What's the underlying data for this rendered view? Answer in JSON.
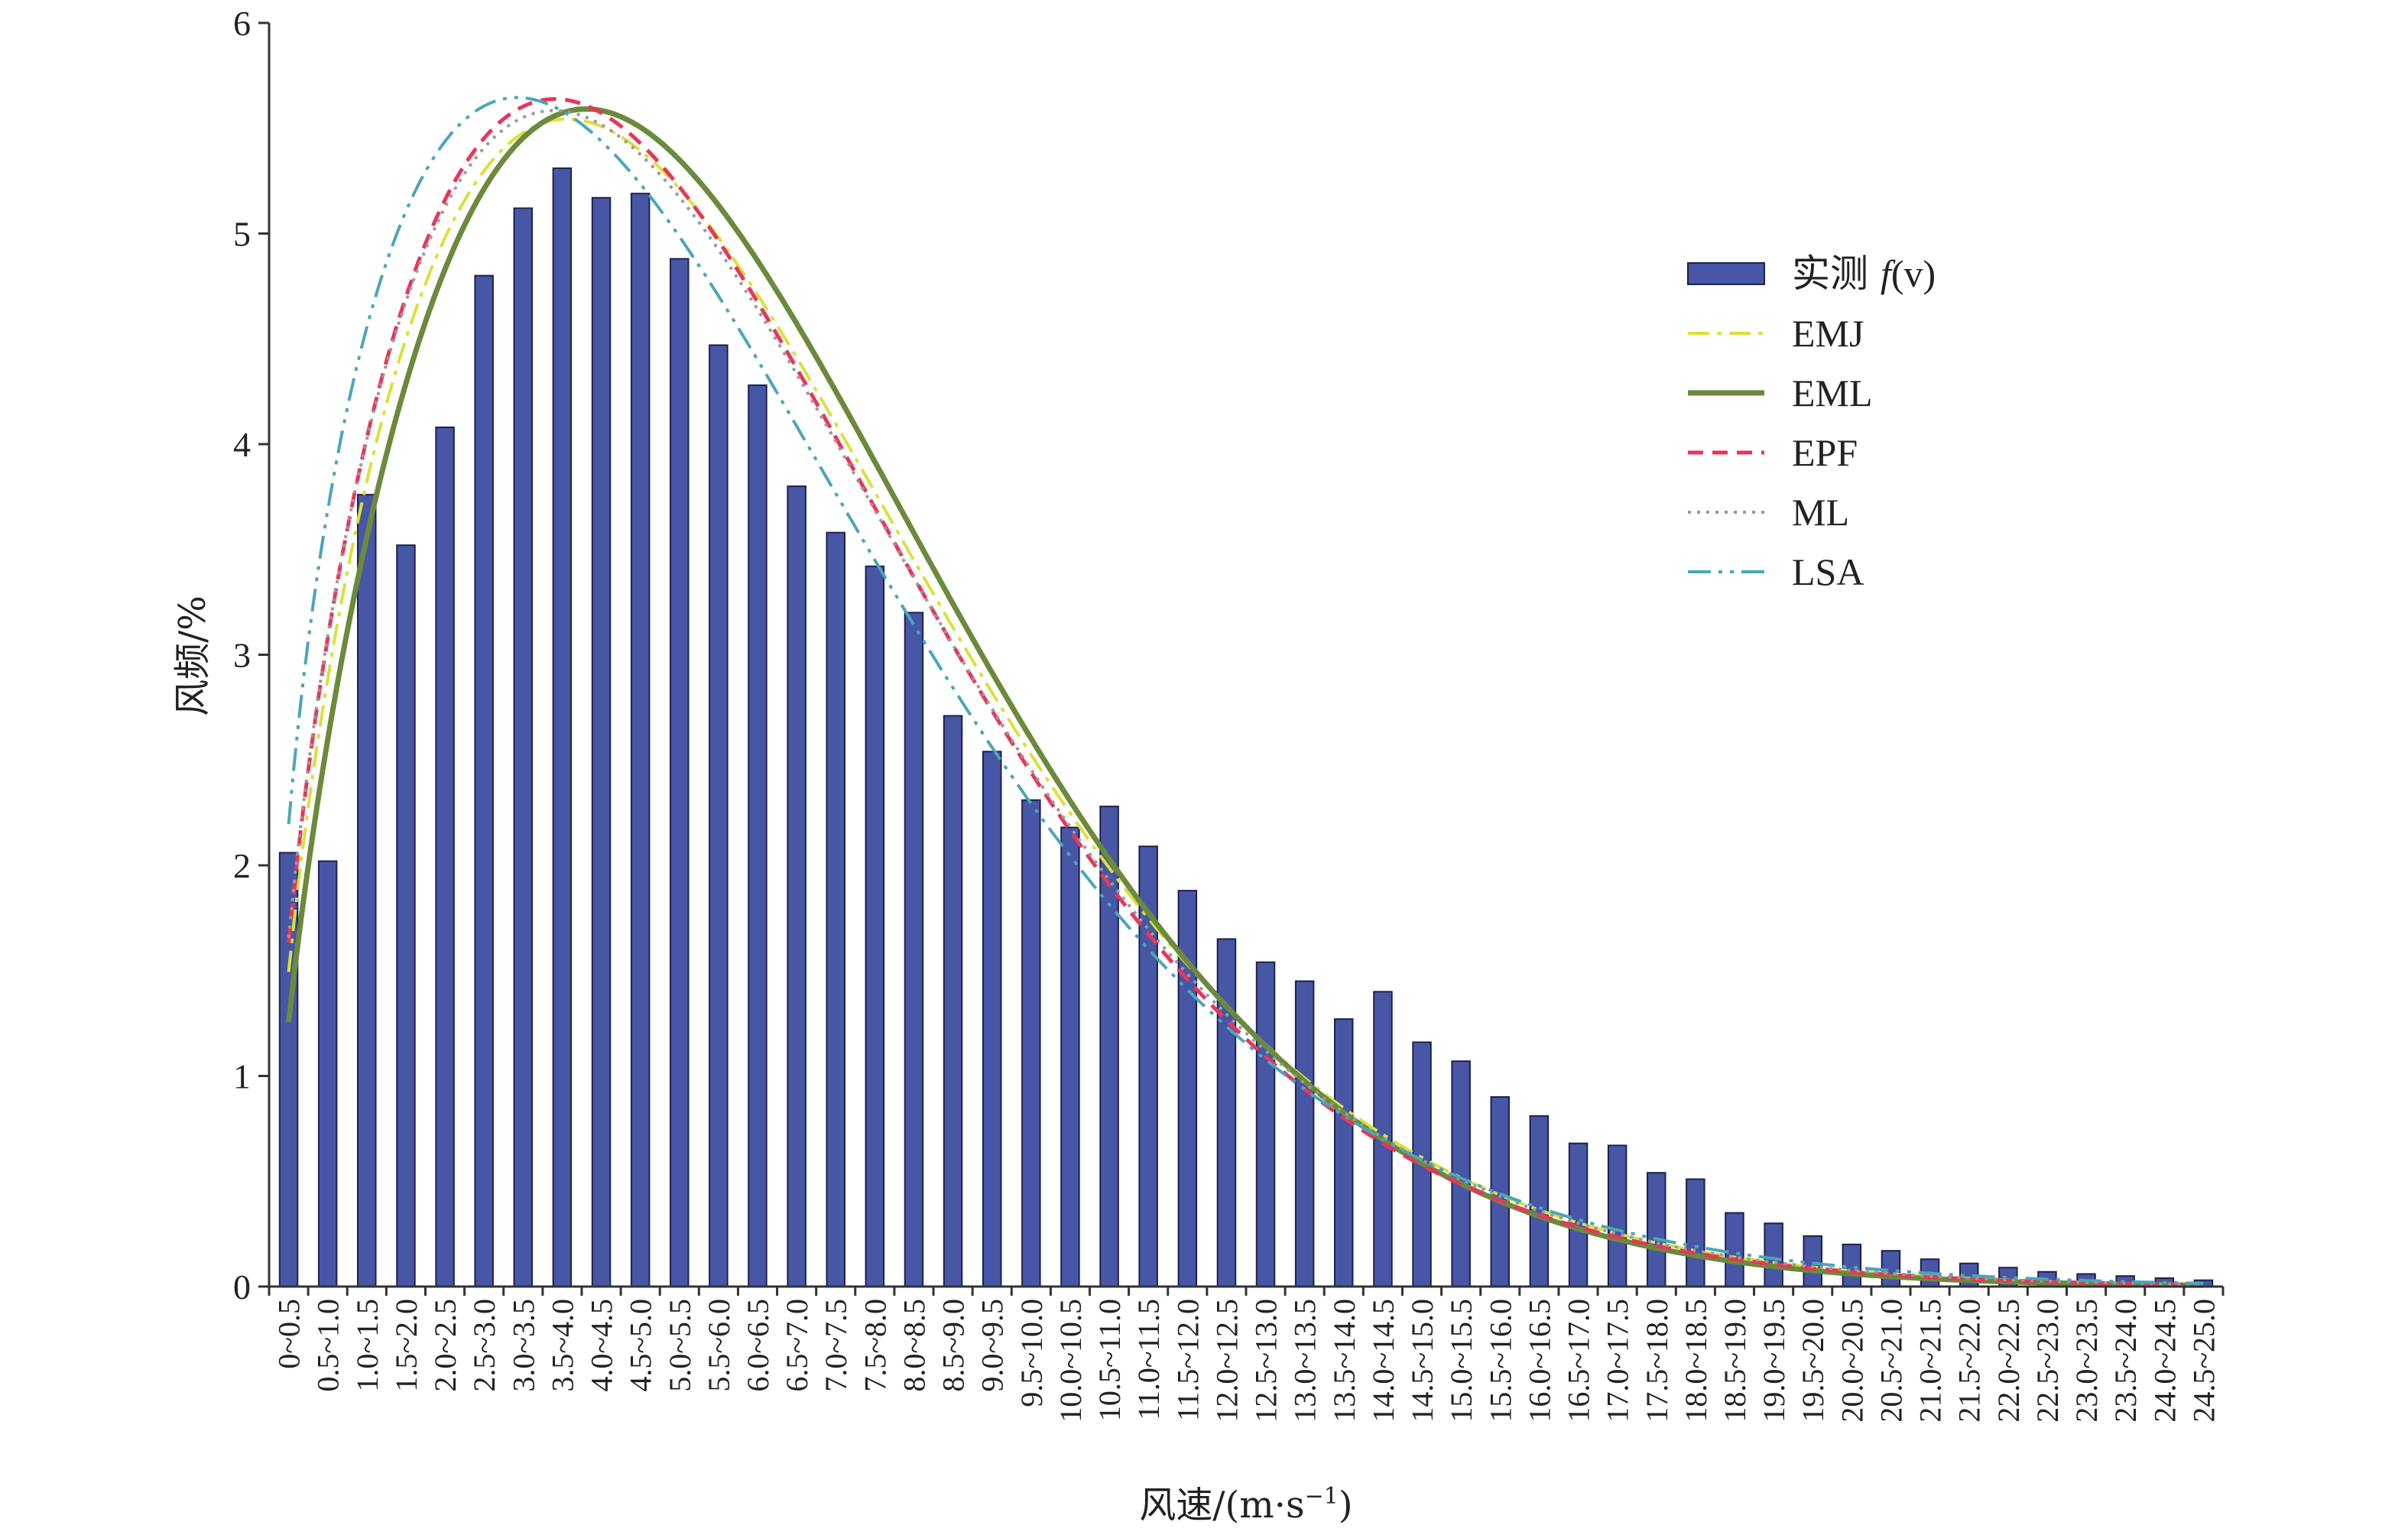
{
  "chart_data": {
    "type": "bar",
    "xlabel": "风速/(m·s⁻¹)",
    "ylabel": "风频/%",
    "ylim": [
      0,
      6
    ],
    "yticks": [
      0,
      1,
      2,
      3,
      4,
      5,
      6
    ],
    "grid": false,
    "legend_position": "top-right",
    "categories": [
      "0~0.5",
      "0.5~1.0",
      "1.0~1.5",
      "1.5~2.0",
      "2.0~2.5",
      "2.5~3.0",
      "3.0~3.5",
      "3.5~4.0",
      "4.0~4.5",
      "4.5~5.0",
      "5.0~5.5",
      "5.5~6.0",
      "6.0~6.5",
      "6.5~7.0",
      "7.0~7.5",
      "7.5~8.0",
      "8.0~8.5",
      "8.5~9.0",
      "9.0~9.5",
      "9.5~10.0",
      "10.0~10.5",
      "10.5~11.0",
      "11.0~11.5",
      "11.5~12.0",
      "12.0~12.5",
      "12.5~13.0",
      "13.0~13.5",
      "13.5~14.0",
      "14.0~14.5",
      "14.5~15.0",
      "15.0~15.5",
      "15.5~16.0",
      "16.0~16.5",
      "16.5~17.0",
      "17.0~17.5",
      "17.5~18.0",
      "18.0~18.5",
      "18.5~19.0",
      "19.0~19.5",
      "19.5~20.0",
      "20.0~20.5",
      "20.5~21.0",
      "21.0~21.5",
      "21.5~22.0",
      "22.0~22.5",
      "22.5~23.0",
      "23.0~23.5",
      "23.5~24.0",
      "24.0~24.5",
      "24.5~25.0"
    ],
    "bars": {
      "name": "实测 f(v)",
      "name_prefix": "实测 ",
      "name_italic": "f",
      "name_suffix": "(v)",
      "color": "#4856a6",
      "values": [
        2.06,
        2.02,
        3.76,
        3.52,
        4.08,
        4.8,
        5.12,
        5.31,
        5.17,
        5.19,
        4.88,
        4.47,
        4.28,
        3.8,
        3.58,
        3.42,
        3.2,
        2.71,
        2.54,
        2.31,
        2.18,
        2.28,
        2.09,
        1.88,
        1.65,
        1.54,
        1.45,
        1.27,
        1.4,
        1.16,
        1.07,
        0.9,
        0.81,
        0.68,
        0.67,
        0.54,
        0.51,
        0.35,
        0.3,
        0.24,
        0.2,
        0.17,
        0.13,
        0.11,
        0.09,
        0.07,
        0.06,
        0.05,
        0.04,
        0.03
      ]
    },
    "series": [
      {
        "name": "EMJ",
        "color": "#d8e23a",
        "dash": "28,10,6,10",
        "width": 4,
        "k": 1.62,
        "c": 6.9
      },
      {
        "name": "EML",
        "color": "#6a8a3c",
        "dash": "",
        "width": 7,
        "k": 1.68,
        "c": 6.95
      },
      {
        "name": "EPF",
        "color": "#e8365a",
        "dash": "20,12",
        "width": 5,
        "k": 1.6,
        "c": 6.75
      },
      {
        "name": "ML",
        "color": "#9a9a9a",
        "dash": "4,8",
        "width": 4,
        "k": 1.59,
        "c": 6.8
      },
      {
        "name": "LSA",
        "color": "#4aa6b8",
        "dash": "30,10,5,10,5,10",
        "width": 4,
        "k": 1.5,
        "c": 6.6
      }
    ]
  }
}
